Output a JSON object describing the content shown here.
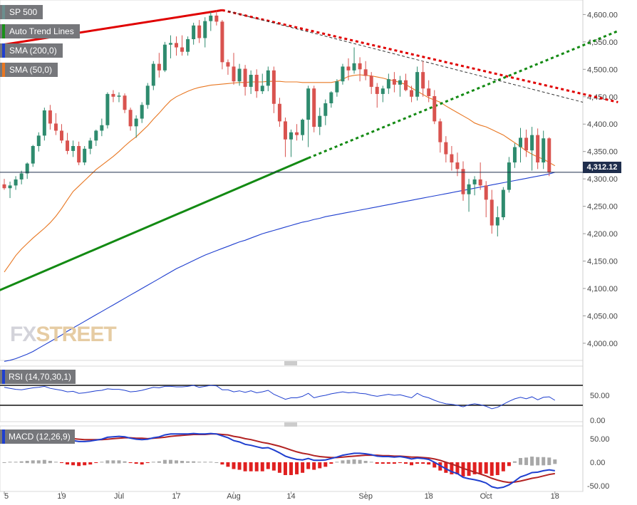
{
  "legends": {
    "symbol": {
      "label": "SP 500",
      "color": "#76777b"
    },
    "trend": {
      "label": "Auto Trend Lines",
      "color": "#1a8f1a"
    },
    "sma200": {
      "label": "SMA (200,0)",
      "color": "#1f3fcf"
    },
    "sma50": {
      "label": "SMA (50,0)",
      "color": "#e87722"
    }
  },
  "rsi_label": "RSI (14,70,30,1)",
  "macd_label": "MACD (12,26,9)",
  "watermark": {
    "a": "FX",
    "b": "STREET"
  },
  "last_price": "4,312.12",
  "colors": {
    "up": "#2e8b6e",
    "down": "#d9534f",
    "sma200": "#1f3fcf",
    "sma50": "#e87722",
    "rsi": "#1f3fcf",
    "macd": "#1f3fcf",
    "signal": "#b22222",
    "hist_pos": "#a8a8a8",
    "hist_neg": "#e02020",
    "trend_res": "#e00000",
    "trend_sup": "#138a13"
  },
  "chart_data": {
    "type": "candlestick",
    "price_axis": {
      "ticks": [
        "4,600.00",
        "4,550.00",
        "4,500.00",
        "4,450.00",
        "4,400.00",
        "4,350.00",
        "4,300.00",
        "4,250.00",
        "4,200.00",
        "4,150.00",
        "4,100.00",
        "4,050.00",
        "4,000.00"
      ],
      "values": [
        4600,
        4550,
        4500,
        4450,
        4400,
        4350,
        4300,
        4250,
        4200,
        4150,
        4100,
        4050,
        4000
      ],
      "range": [
        3970,
        4620
      ]
    },
    "x_labels": [
      {
        "label": "5",
        "i": 0
      },
      {
        "label": "19",
        "i": 10
      },
      {
        "label": "Jul",
        "i": 20
      },
      {
        "label": "17",
        "i": 30
      },
      {
        "label": "Aug",
        "i": 40
      },
      {
        "label": "14",
        "i": 50
      },
      {
        "label": "Sep",
        "i": 63
      },
      {
        "label": "18",
        "i": 74
      },
      {
        "label": "Oct",
        "i": 84
      },
      {
        "label": "18",
        "i": 96
      }
    ],
    "candles": [
      [
        4290,
        4300,
        4280,
        4283
      ],
      [
        4283,
        4295,
        4265,
        4288
      ],
      [
        4288,
        4305,
        4280,
        4299
      ],
      [
        4299,
        4315,
        4290,
        4310
      ],
      [
        4310,
        4330,
        4300,
        4328
      ],
      [
        4328,
        4362,
        4322,
        4360
      ],
      [
        4360,
        4385,
        4350,
        4379
      ],
      [
        4379,
        4430,
        4370,
        4425
      ],
      [
        4425,
        4435,
        4390,
        4401
      ],
      [
        4401,
        4420,
        4380,
        4388
      ],
      [
        4388,
        4400,
        4365,
        4370
      ],
      [
        4370,
        4384,
        4345,
        4351
      ],
      [
        4351,
        4370,
        4340,
        4360
      ],
      [
        4360,
        4368,
        4325,
        4330
      ],
      [
        4330,
        4360,
        4325,
        4355
      ],
      [
        4355,
        4375,
        4345,
        4370
      ],
      [
        4370,
        4390,
        4360,
        4388
      ],
      [
        4388,
        4410,
        4378,
        4398
      ],
      [
        4398,
        4458,
        4392,
        4455
      ],
      [
        4455,
        4462,
        4440,
        4450
      ],
      [
        4450,
        4458,
        4440,
        4452
      ],
      [
        4452,
        4456,
        4420,
        4426
      ],
      [
        4426,
        4430,
        4388,
        4396
      ],
      [
        4396,
        4416,
        4375,
        4410
      ],
      [
        4410,
        4440,
        4402,
        4435
      ],
      [
        4435,
        4475,
        4428,
        4470
      ],
      [
        4470,
        4515,
        4462,
        4510
      ],
      [
        4510,
        4530,
        4485,
        4498
      ],
      [
        4498,
        4550,
        4495,
        4545
      ],
      [
        4545,
        4562,
        4520,
        4548
      ],
      [
        4548,
        4560,
        4525,
        4540
      ],
      [
        4540,
        4562,
        4525,
        4532
      ],
      [
        4532,
        4560,
        4525,
        4555
      ],
      [
        4555,
        4585,
        4545,
        4580
      ],
      [
        4580,
        4590,
        4548,
        4557
      ],
      [
        4557,
        4595,
        4540,
        4588
      ],
      [
        4588,
        4605,
        4570,
        4598
      ],
      [
        4598,
        4608,
        4580,
        4587
      ],
      [
        4587,
        4590,
        4500,
        4513
      ],
      [
        4513,
        4518,
        4490,
        4505
      ],
      [
        4505,
        4530,
        4472,
        4478
      ],
      [
        4478,
        4510,
        4470,
        4501
      ],
      [
        4501,
        4508,
        4452,
        4468
      ],
      [
        4468,
        4498,
        4455,
        4490
      ],
      [
        4490,
        4500,
        4448,
        4460
      ],
      [
        4460,
        4492,
        4455,
        4470
      ],
      [
        4470,
        4505,
        4460,
        4498
      ],
      [
        4498,
        4505,
        4420,
        4437
      ],
      [
        4437,
        4448,
        4395,
        4405
      ],
      [
        4405,
        4412,
        4340,
        4372
      ],
      [
        4372,
        4390,
        4340,
        4385
      ],
      [
        4385,
        4400,
        4370,
        4380
      ],
      [
        4380,
        4410,
        4370,
        4408
      ],
      [
        4408,
        4470,
        4358,
        4465
      ],
      [
        4465,
        4470,
        4385,
        4395
      ],
      [
        4395,
        4430,
        4380,
        4415
      ],
      [
        4415,
        4445,
        4398,
        4438
      ],
      [
        4438,
        4460,
        4430,
        4458
      ],
      [
        4458,
        4482,
        4450,
        4478
      ],
      [
        4478,
        4510,
        4472,
        4505
      ],
      [
        4505,
        4520,
        4480,
        4498
      ],
      [
        4498,
        4540,
        4492,
        4511
      ],
      [
        4511,
        4522,
        4478,
        4500
      ],
      [
        4500,
        4515,
        4480,
        4488
      ],
      [
        4488,
        4495,
        4455,
        4468
      ],
      [
        4468,
        4475,
        4430,
        4455
      ],
      [
        4455,
        4470,
        4440,
        4465
      ],
      [
        4465,
        4492,
        4455,
        4482
      ],
      [
        4482,
        4495,
        4458,
        4472
      ],
      [
        4472,
        4488,
        4450,
        4480
      ],
      [
        4480,
        4492,
        4460,
        4462
      ],
      [
        4462,
        4470,
        4440,
        4450
      ],
      [
        4450,
        4505,
        4443,
        4495
      ],
      [
        4495,
        4515,
        4450,
        4465
      ],
      [
        4465,
        4480,
        4440,
        4451
      ],
      [
        4451,
        4462,
        4400,
        4405
      ],
      [
        4405,
        4410,
        4348,
        4367
      ],
      [
        4367,
        4378,
        4330,
        4345
      ],
      [
        4345,
        4360,
        4315,
        4330
      ],
      [
        4330,
        4348,
        4305,
        4318
      ],
      [
        4318,
        4332,
        4260,
        4272
      ],
      [
        4272,
        4300,
        4240,
        4290
      ],
      [
        4290,
        4305,
        4270,
        4299
      ],
      [
        4299,
        4330,
        4280,
        4288
      ],
      [
        4288,
        4296,
        4230,
        4262
      ],
      [
        4262,
        4280,
        4200,
        4215
      ],
      [
        4215,
        4250,
        4195,
        4230
      ],
      [
        4230,
        4285,
        4225,
        4280
      ],
      [
        4280,
        4340,
        4275,
        4330
      ],
      [
        4330,
        4365,
        4320,
        4358
      ],
      [
        4358,
        4393,
        4330,
        4375
      ],
      [
        4375,
        4390,
        4340,
        4352
      ],
      [
        4352,
        4395,
        4315,
        4380
      ],
      [
        4380,
        4392,
        4318,
        4330
      ],
      [
        4330,
        4388,
        4318,
        4374
      ],
      [
        4374,
        4376,
        4305,
        4312
      ]
    ],
    "sma50": [
      4130,
      4145,
      4160,
      4172,
      4182,
      4192,
      4201,
      4210,
      4220,
      4232,
      4246,
      4262,
      4277,
      4287,
      4297,
      4307,
      4317,
      4325,
      4333,
      4341,
      4350,
      4360,
      4369,
      4377,
      4387,
      4397,
      4409,
      4420,
      4432,
      4443,
      4450,
      4455,
      4460,
      4464,
      4467,
      4469,
      4471,
      4472,
      4473,
      4474,
      4475,
      4476,
      4476,
      4477,
      4477,
      4477,
      4478,
      4478,
      4478,
      4477,
      4477,
      4477,
      4476,
      4476,
      4476,
      4476,
      4476,
      4476,
      4478,
      4482,
      4487,
      4489,
      4490,
      4489,
      4488,
      4486,
      4484,
      4481,
      4479,
      4476,
      4472,
      4466,
      4460,
      4454,
      4448,
      4444,
      4440,
      4433,
      4427,
      4421,
      4415,
      4409,
      4402,
      4398,
      4395,
      4390,
      4385,
      4380,
      4373,
      4366,
      4359,
      4351,
      4345,
      4340,
      4336,
      4330,
      4324
    ],
    "sma200": [
      3967,
      3969,
      3972,
      3976,
      3980,
      3985,
      3991,
      3997,
      4003,
      4009,
      4015,
      4022,
      4028,
      4034,
      4040,
      4046,
      4052,
      4058,
      4064,
      4070,
      4076,
      4082,
      4088,
      4094,
      4100,
      4106,
      4112,
      4118,
      4124,
      4130,
      4136,
      4141,
      4146,
      4151,
      4156,
      4161,
      4165,
      4169,
      4173,
      4177,
      4181,
      4185,
      4188,
      4192,
      4196,
      4200,
      4203,
      4206,
      4209,
      4212,
      4215,
      4218,
      4221,
      4223,
      4226,
      4228,
      4231,
      4233,
      4235,
      4237,
      4239,
      4241,
      4243,
      4245,
      4247,
      4249,
      4251,
      4253,
      4255,
      4257,
      4259,
      4261,
      4263,
      4265,
      4267,
      4269,
      4271,
      4273,
      4275,
      4277,
      4279,
      4281,
      4283,
      4285,
      4287,
      4289,
      4291,
      4293,
      4295,
      4297,
      4299,
      4301,
      4303,
      4305,
      4307,
      4309,
      4312
    ],
    "trend_resistance": {
      "i1": -5,
      "v1": 4537,
      "i2": 38,
      "v2": 4608
    },
    "trend_resistance_ext": {
      "i1": 38,
      "v1": 4608,
      "i2": 107,
      "v2": 4440
    },
    "trend_support": {
      "i1": -5,
      "v1": 4078,
      "i2": 53,
      "v2": 4338
    },
    "trend_support_ext": {
      "i1": 53,
      "v1": 4338,
      "i2": 107,
      "v2": 4570
    },
    "rsi": {
      "range": [
        0,
        100
      ],
      "ticks": [
        "50.00",
        "0.00"
      ],
      "tick_values": [
        50,
        0
      ],
      "levels": [
        70,
        30
      ],
      "values": [
        66,
        64,
        62,
        61,
        63,
        65,
        66,
        68,
        64,
        62,
        60,
        57,
        58,
        54,
        55,
        57,
        59,
        60,
        63,
        62,
        62,
        60,
        57,
        58,
        60,
        63,
        66,
        65,
        68,
        68,
        67,
        67,
        68,
        70,
        66,
        68,
        70,
        69,
        61,
        61,
        57,
        59,
        56,
        59,
        55,
        57,
        60,
        52,
        47,
        42,
        45,
        45,
        48,
        54,
        45,
        48,
        50,
        53,
        55,
        57,
        55,
        56,
        54,
        53,
        50,
        48,
        50,
        52,
        50,
        51,
        48,
        45,
        54,
        48,
        45,
        40,
        36,
        33,
        32,
        30,
        27,
        31,
        33,
        31,
        28,
        23,
        26,
        32,
        38,
        43,
        46,
        43,
        47,
        41,
        46,
        47,
        40
      ]
    },
    "macd": {
      "range": [
        -62,
        68
      ],
      "ticks": [
        "50.00",
        "0.00",
        "-50.00"
      ],
      "tick_values": [
        50,
        0,
        -50
      ],
      "macd": [
        46,
        47,
        48,
        49,
        51,
        53,
        54,
        56,
        55,
        53,
        51,
        48,
        46,
        44,
        44,
        45,
        47,
        49,
        53,
        54,
        55,
        54,
        51,
        49,
        48,
        49,
        52,
        54,
        58,
        60,
        60,
        60,
        60,
        61,
        60,
        60,
        61,
        60,
        56,
        52,
        46,
        43,
        38,
        36,
        33,
        30,
        31,
        26,
        20,
        13,
        9,
        6,
        5,
        8,
        4,
        4,
        5,
        8,
        11,
        15,
        17,
        19,
        19,
        18,
        16,
        13,
        12,
        12,
        11,
        12,
        10,
        7,
        9,
        8,
        6,
        0,
        -7,
        -14,
        -20,
        -24,
        -32,
        -35,
        -37,
        -40,
        -44,
        -52,
        -55,
        -53,
        -48,
        -40,
        -31,
        -27,
        -22,
        -21,
        -18,
        -16,
        -18
      ],
      "signal": [
        46,
        46,
        47,
        47,
        48,
        49,
        50,
        51,
        52,
        52,
        52,
        51,
        50,
        49,
        48,
        48,
        48,
        48,
        49,
        50,
        51,
        52,
        52,
        51,
        51,
        50,
        51,
        52,
        53,
        55,
        56,
        57,
        58,
        59,
        59,
        59,
        60,
        60,
        59,
        58,
        55,
        53,
        50,
        48,
        45,
        42,
        40,
        37,
        34,
        30,
        26,
        22,
        19,
        17,
        14,
        12,
        11,
        10,
        10,
        11,
        12,
        13,
        14,
        15,
        15,
        15,
        14,
        14,
        13,
        13,
        12,
        11,
        11,
        10,
        9,
        7,
        4,
        0,
        -4,
        -8,
        -13,
        -17,
        -21,
        -25,
        -29,
        -34,
        -38,
        -41,
        -43,
        -42,
        -40,
        -37,
        -34,
        -32,
        -29,
        -26,
        -24
      ]
    }
  }
}
